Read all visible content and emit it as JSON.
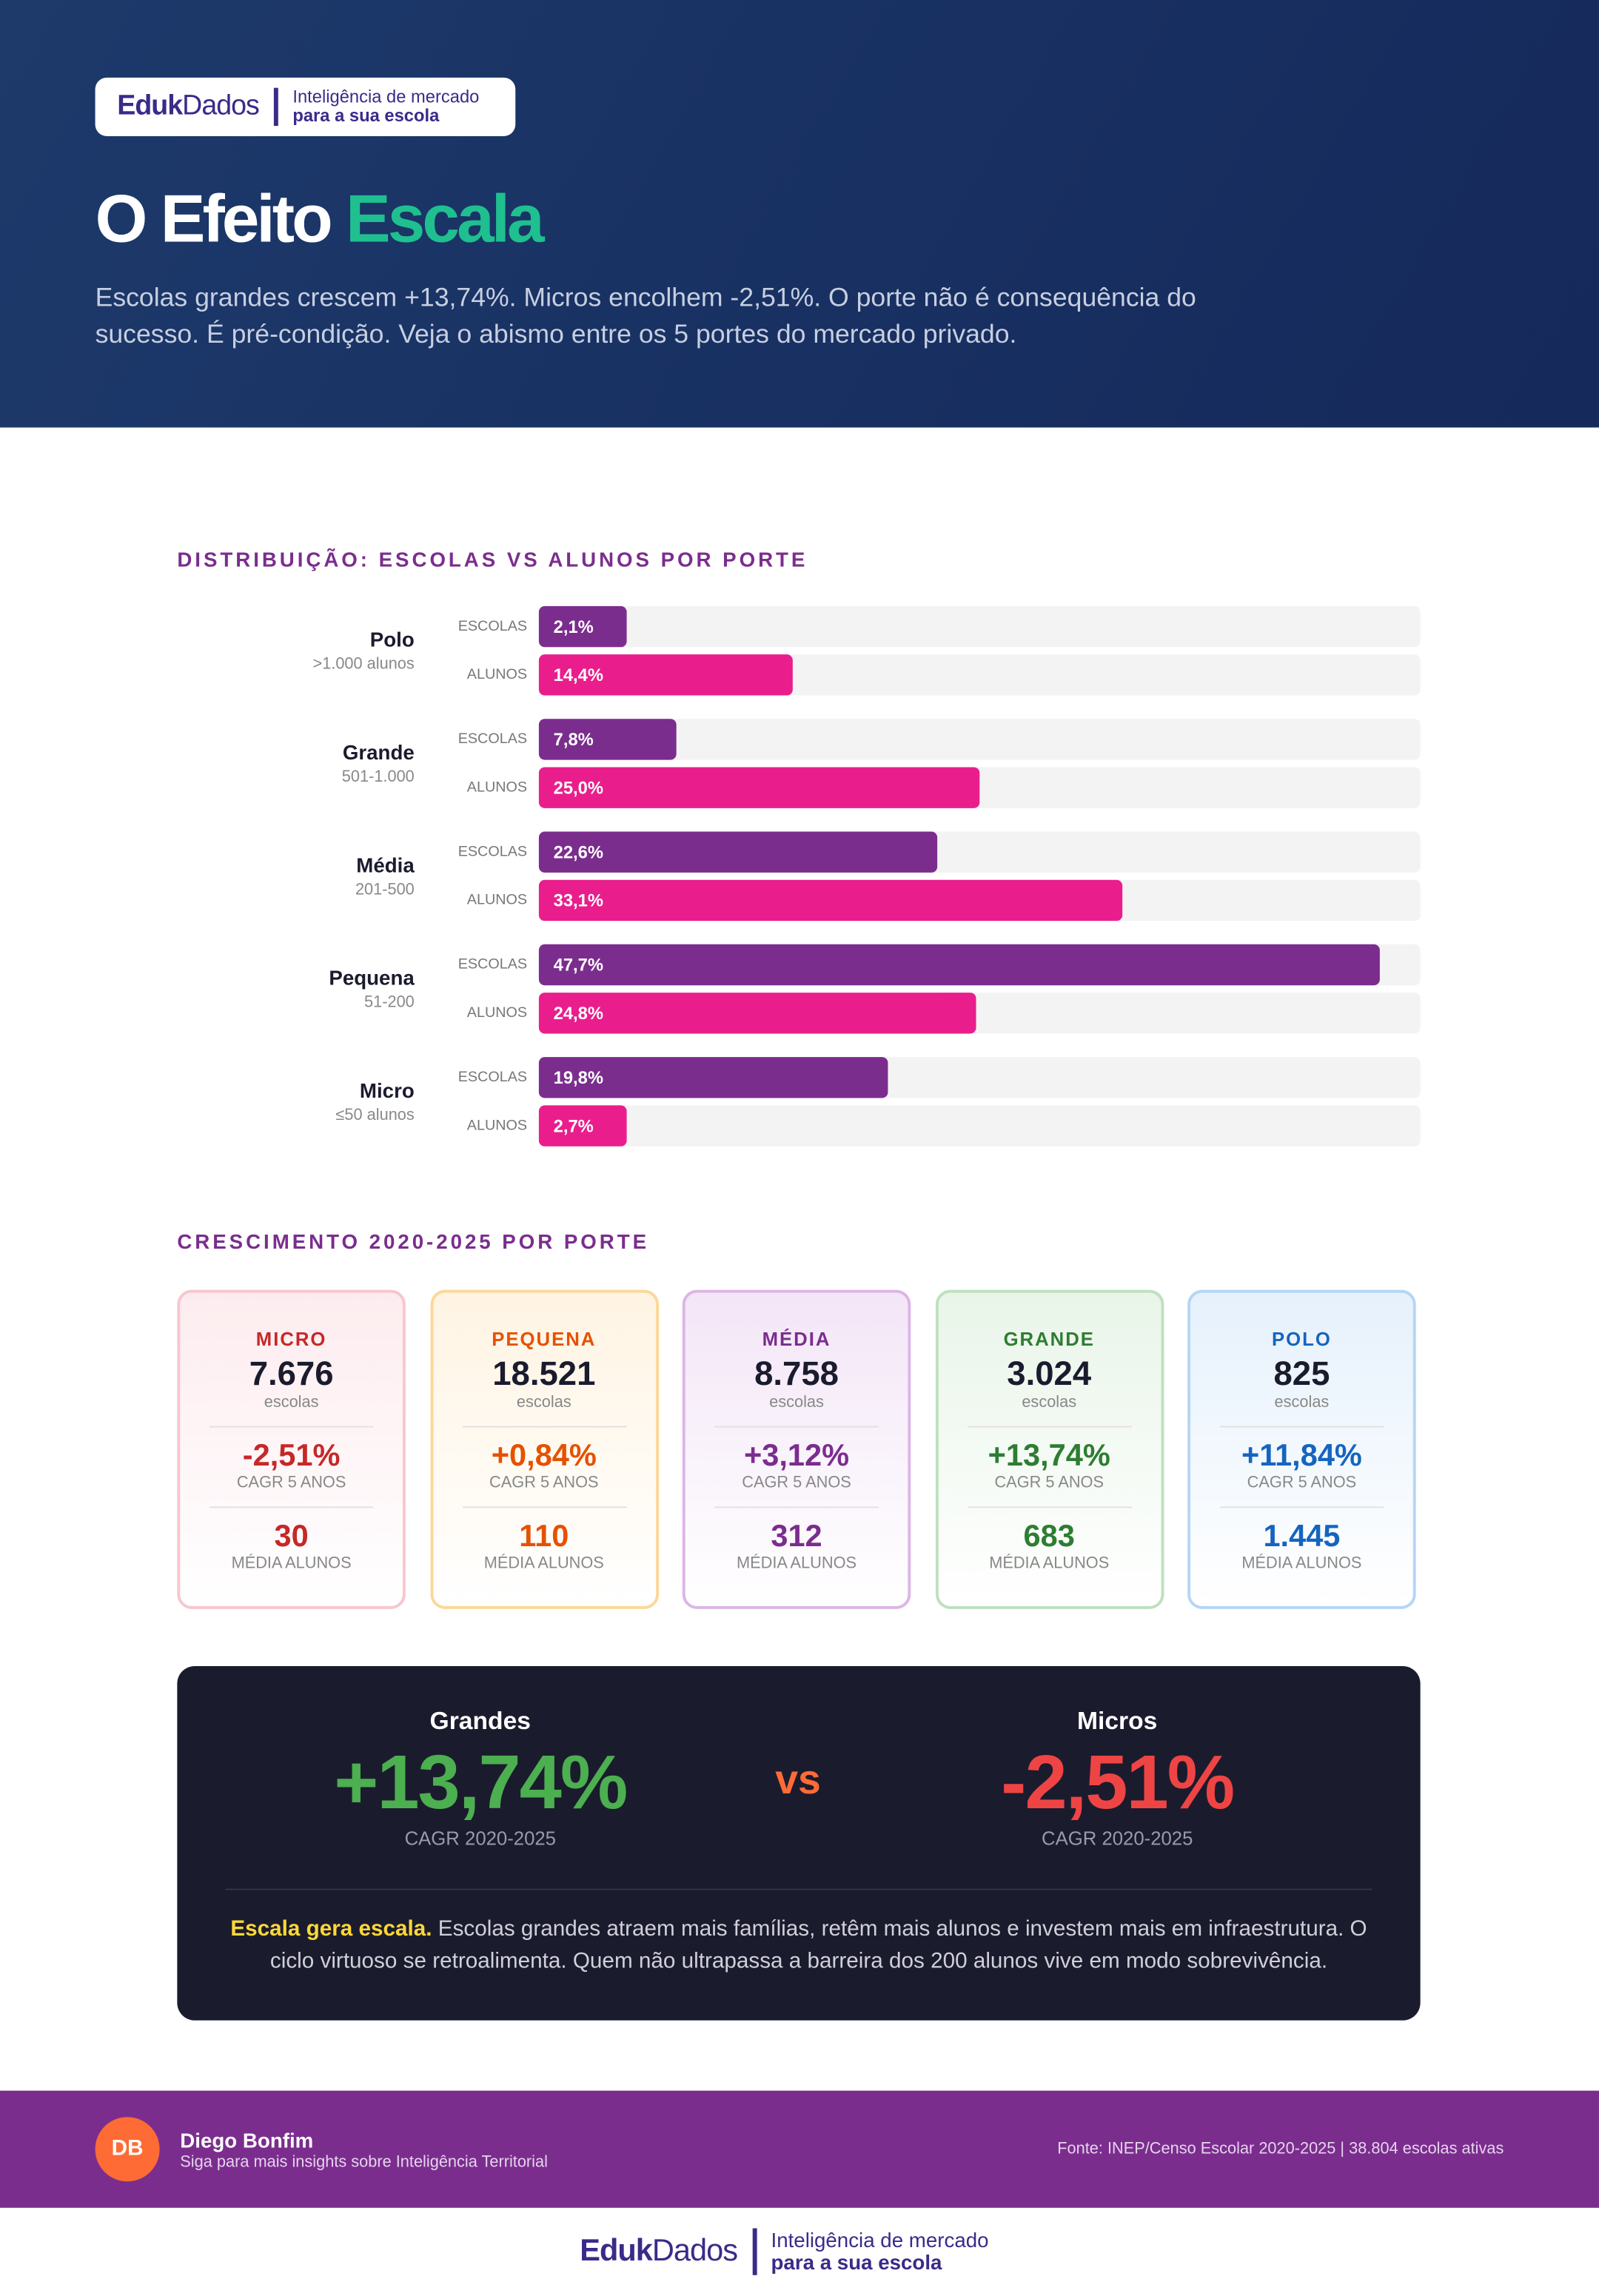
{
  "header": {
    "brand": {
      "eduk": "Eduk",
      "dados": "Dados",
      "tagline1": "Inteligência de mercado",
      "tagline2": "para a sua escola"
    },
    "title_part1": "O Efeito",
    "title_part2": "Escala",
    "subtitle": "Escolas grandes crescem +13,74%. Micros encolhem -2,51%. O porte não é consequência do sucesso. É pré-condição. Veja o abismo entre os 5 portes do mercado privado."
  },
  "chart_data": {
    "type": "bar",
    "orientation": "horizontal",
    "title": "DISTRIBUIÇÃO: ESCOLAS VS ALUNOS POR PORTE",
    "categories": [
      "Polo",
      "Grande",
      "Média",
      "Pequena",
      "Micro"
    ],
    "category_sublabels": [
      ">1.000 alunos",
      "501-1.000",
      "201-500",
      "51-200",
      "≤50 alunos"
    ],
    "series": [
      {
        "name": "ESCOLAS",
        "color": "#7b2d8e",
        "values": [
          2.1,
          7.8,
          22.6,
          47.7,
          19.8
        ],
        "value_labels": [
          "2,1%",
          "7,8%",
          "22,6%",
          "47,7%",
          "19,8%"
        ]
      },
      {
        "name": "ALUNOS",
        "color": "#e91e8c",
        "values": [
          14.4,
          25.0,
          33.1,
          24.8,
          2.7
        ],
        "value_labels": [
          "14,4%",
          "25,0%",
          "33,1%",
          "24,8%",
          "2,7%"
        ]
      }
    ],
    "xlim": [
      0,
      50
    ]
  },
  "growth": {
    "title": "CRESCIMENTO 2020-2025 POR PORTE",
    "cards": [
      {
        "name": "MICRO",
        "count": "7.676",
        "count_label": "escolas",
        "cagr": "-2,51%",
        "cagr_label": "CAGR 5 ANOS",
        "avg": "30",
        "avg_label": "MÉDIA ALUNOS"
      },
      {
        "name": "PEQUENA",
        "count": "18.521",
        "count_label": "escolas",
        "cagr": "+0,84%",
        "cagr_label": "CAGR 5 ANOS",
        "avg": "110",
        "avg_label": "MÉDIA ALUNOS"
      },
      {
        "name": "MÉDIA",
        "count": "8.758",
        "count_label": "escolas",
        "cagr": "+3,12%",
        "cagr_label": "CAGR 5 ANOS",
        "avg": "312",
        "avg_label": "MÉDIA ALUNOS"
      },
      {
        "name": "GRANDE",
        "count": "3.024",
        "count_label": "escolas",
        "cagr": "+13,74%",
        "cagr_label": "CAGR 5 ANOS",
        "avg": "683",
        "avg_label": "MÉDIA ALUNOS"
      },
      {
        "name": "POLO",
        "count": "825",
        "count_label": "escolas",
        "cagr": "+11,84%",
        "cagr_label": "CAGR 5 ANOS",
        "avg": "1.445",
        "avg_label": "MÉDIA ALUNOS"
      }
    ]
  },
  "comparison": {
    "left": {
      "label": "Grandes",
      "value": "+13,74%",
      "caption": "CAGR 2020-2025"
    },
    "vs": "vs",
    "right": {
      "label": "Micros",
      "value": "-2,51%",
      "caption": "CAGR 2020-2025"
    },
    "highlight": "Escala gera escala.",
    "text": "Escolas grandes atraem mais famílias, retêm mais alunos e investem mais em infraestrutura. O ciclo virtuoso se retroalimenta. Quem não ultrapassa a barreira dos 200 alunos vive em modo sobrevivência."
  },
  "footer": {
    "initials": "DB",
    "name": "Diego Bonfim",
    "tagline": "Siga para mais insights sobre Inteligência Territorial",
    "source": "Fonte: INEP/Censo Escolar 2020-2025 | 38.804 escolas ativas"
  },
  "bottom_brand": {
    "eduk": "Eduk",
    "dados": "Dados",
    "tagline1": "Inteligência de mercado",
    "tagline2": "para a sua escola"
  }
}
